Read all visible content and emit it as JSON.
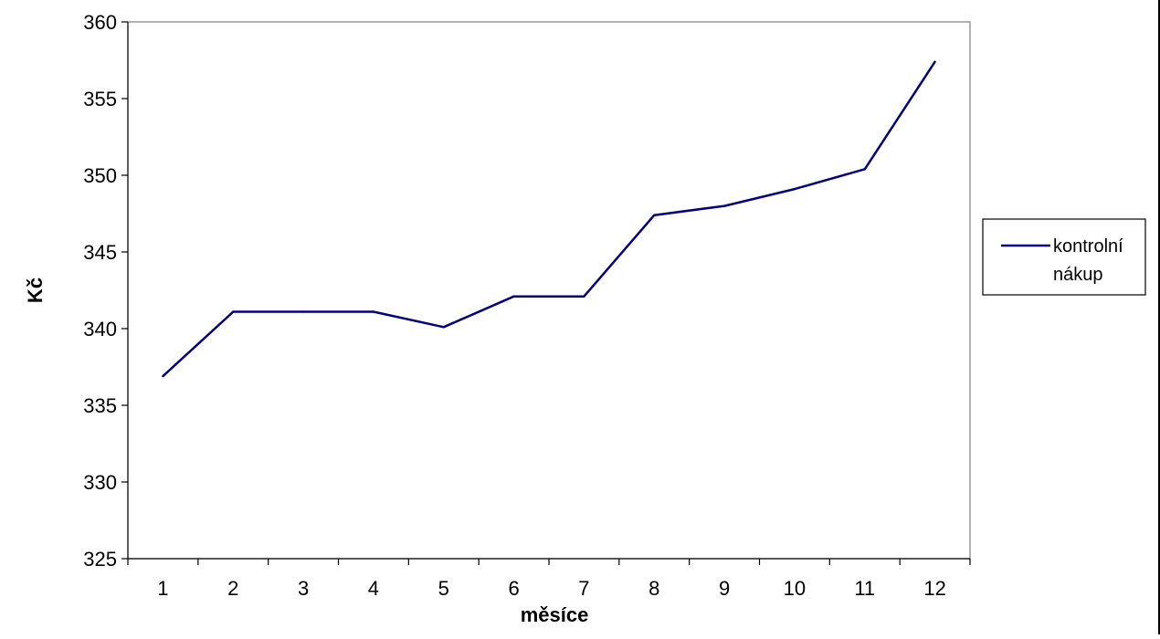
{
  "chart_data": {
    "type": "line",
    "title": "",
    "xlabel": "měsíce",
    "ylabel": "Kč",
    "categories": [
      "1",
      "2",
      "3",
      "4",
      "5",
      "6",
      "7",
      "8",
      "9",
      "10",
      "11",
      "12"
    ],
    "yticks": [
      "325",
      "330",
      "335",
      "340",
      "345",
      "350",
      "355",
      "360"
    ],
    "ylim": [
      325,
      360
    ],
    "grid": false,
    "legend_position": "right",
    "series": [
      {
        "name": "kontrolní nákup",
        "legend_lines": [
          "kontrolní",
          "nákup"
        ],
        "color": "#000080",
        "values": [
          336.9,
          341.1,
          341.1,
          341.1,
          340.1,
          342.1,
          342.1,
          347.4,
          348.0,
          349.1,
          350.4,
          357.4
        ]
      }
    ]
  }
}
